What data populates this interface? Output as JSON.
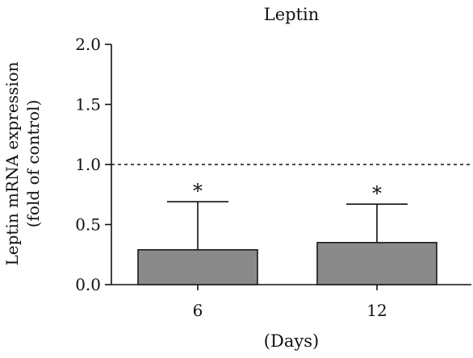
{
  "chart_data": {
    "type": "bar",
    "title": "Leptin",
    "xlabel": "(Days)",
    "ylabel_lines": [
      "Leptin mRNA expression",
      "(fold of control)"
    ],
    "categories": [
      "6",
      "12"
    ],
    "values": [
      0.29,
      0.35
    ],
    "error_upper": [
      0.4,
      0.32
    ],
    "annotations": [
      "*",
      "*"
    ],
    "ylim": [
      0,
      2.0
    ],
    "yticks": [
      0,
      0.5,
      1.0,
      1.5,
      2.0
    ],
    "ytick_labels": [
      "0.0",
      "0.5",
      "1.0",
      "1.5",
      "2.0"
    ],
    "reference_line": 1.0,
    "grid": false,
    "colors": {
      "bar_fill": "#8a8a8a",
      "bar_stroke": "#1a1a1a",
      "axis": "#111111",
      "reference_line": "#111111"
    }
  }
}
